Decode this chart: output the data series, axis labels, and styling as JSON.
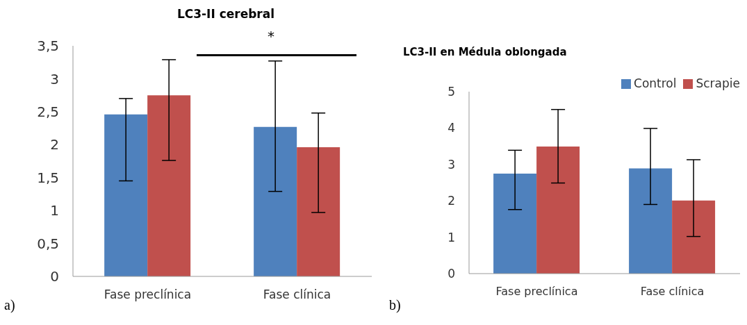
{
  "chart_data": [
    {
      "type": "bar",
      "title": "LC3-II cerebral",
      "categories": [
        "Fase preclínica",
        "Fase clínica"
      ],
      "series": [
        {
          "color": "#4f81bd",
          "values": [
            2.46,
            2.27
          ],
          "errors": [
            [
              1.45,
              2.7
            ],
            [
              1.29,
              3.27
            ]
          ]
        },
        {
          "color": "#c0504d",
          "values": [
            2.75,
            1.96
          ],
          "errors": [
            [
              1.76,
              3.29
            ],
            [
              0.97,
              2.48
            ]
          ]
        }
      ],
      "ylim": [
        0,
        3.5
      ],
      "yticks": [
        0,
        {
          "value": 0.5,
          "label": "0,5"
        },
        1,
        {
          "value": 1.5,
          "label": "1,5"
        },
        2,
        {
          "value": 2.5,
          "label": "2,5"
        },
        3,
        {
          "value": 3.5,
          "label": "3,5"
        }
      ],
      "grid": false,
      "legend": false,
      "annotations": [
        "*",
        "a)"
      ]
    },
    {
      "type": "bar",
      "title": "LC3-II en Médula oblongada",
      "categories": [
        "Fase preclínica",
        "Fase clínica"
      ],
      "series": [
        {
          "name": "Control",
          "color": "#4f81bd",
          "values": [
            2.75,
            2.89
          ],
          "errors": [
            [
              1.76,
              3.39
            ],
            [
              1.9,
              3.99
            ]
          ]
        },
        {
          "name": "Scrapie",
          "color": "#c0504d",
          "values": [
            3.49,
            2.01
          ],
          "errors": [
            [
              2.49,
              4.51
            ],
            [
              1.02,
              3.13
            ]
          ]
        }
      ],
      "ylim": [
        0,
        5
      ],
      "yticks": [
        0,
        1,
        2,
        3,
        4,
        5
      ],
      "grid": false,
      "legend": "top right",
      "annotations": [
        "b)"
      ]
    }
  ]
}
